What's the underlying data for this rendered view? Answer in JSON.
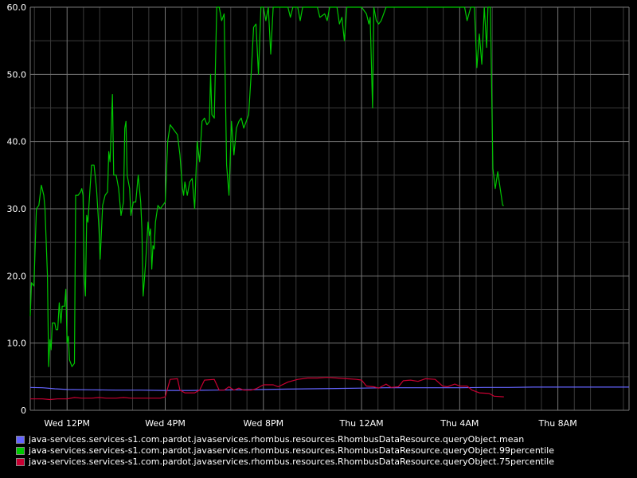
{
  "colors": {
    "background": "#000000",
    "grid_major": "#777777",
    "grid_minor": "#3a3a3a",
    "text": "#ffffff"
  },
  "chart_data": {
    "type": "line",
    "ylim": [
      0,
      60
    ],
    "xlim": [
      10.5,
      34.9
    ],
    "yticks": [
      {
        "value": 0,
        "label": "0"
      },
      {
        "value": 10,
        "label": "10.0"
      },
      {
        "value": 20,
        "label": "20.0"
      },
      {
        "value": 30,
        "label": "30.0"
      },
      {
        "value": 40,
        "label": "40.0"
      },
      {
        "value": 50,
        "label": "50.0"
      },
      {
        "value": 60,
        "label": "60.0"
      }
    ],
    "yminor": [
      5,
      15,
      25,
      35,
      45,
      55
    ],
    "xticks": [
      {
        "value": 12,
        "label": "Wed 12PM"
      },
      {
        "value": 16,
        "label": "Wed  4PM"
      },
      {
        "value": 20,
        "label": "Wed  8PM"
      },
      {
        "value": 24,
        "label": "Thu 12AM"
      },
      {
        "value": 28,
        "label": "Thu  4AM"
      },
      {
        "value": 32,
        "label": "Thu  8AM"
      }
    ],
    "xminor": [
      10.67,
      11.33,
      12.67,
      13.33,
      14.67,
      15.33,
      16.67,
      17.33,
      18.67,
      19.33,
      20.67,
      21.33,
      22.67,
      23.33,
      24.67,
      25.33,
      26.67,
      27.33,
      28.67,
      29.33,
      30.67,
      31.33,
      32.67,
      33.33,
      34.67
    ],
    "series": [
      {
        "name": "java-services.services-s1.com.pardot.javaservices.rhombus.resources.RhombusDataResource.queryObject.mean",
        "color": "#6464ff",
        "points": [
          [
            10.5,
            3.4
          ],
          [
            11.0,
            3.35
          ],
          [
            11.5,
            3.2
          ],
          [
            12.0,
            3.1
          ],
          [
            13.0,
            3.05
          ],
          [
            14.0,
            3.0
          ],
          [
            15.0,
            3.0
          ],
          [
            16.0,
            2.95
          ],
          [
            17.0,
            2.95
          ],
          [
            18.0,
            3.0
          ],
          [
            19.0,
            3.05
          ],
          [
            20.0,
            3.1
          ],
          [
            21.0,
            3.15
          ],
          [
            22.0,
            3.2
          ],
          [
            23.0,
            3.25
          ],
          [
            24.0,
            3.3
          ],
          [
            25.0,
            3.35
          ],
          [
            26.0,
            3.35
          ],
          [
            27.0,
            3.35
          ],
          [
            28.0,
            3.35
          ],
          [
            29.0,
            3.4
          ],
          [
            30.0,
            3.4
          ],
          [
            31.0,
            3.45
          ],
          [
            32.0,
            3.45
          ],
          [
            33.0,
            3.45
          ],
          [
            34.0,
            3.45
          ],
          [
            34.9,
            3.45
          ]
        ]
      },
      {
        "name": "java-services.services-s1.com.pardot.javaservices.rhombus.resources.RhombusDataResource.queryObject.99percentile",
        "color": "#00c800",
        "points": [
          [
            10.5,
            14.0
          ],
          [
            10.55,
            19.0
          ],
          [
            10.65,
            18.5
          ],
          [
            10.75,
            30.0
          ],
          [
            10.85,
            30.5
          ],
          [
            10.95,
            33.5
          ],
          [
            11.05,
            32.0
          ],
          [
            11.1,
            30.0
          ],
          [
            11.2,
            20.0
          ],
          [
            11.25,
            6.5
          ],
          [
            11.3,
            10.5
          ],
          [
            11.35,
            9.0
          ],
          [
            11.4,
            13.0
          ],
          [
            11.5,
            13.0
          ],
          [
            11.55,
            12.0
          ],
          [
            11.62,
            12.0
          ],
          [
            11.68,
            16.0
          ],
          [
            11.75,
            13.0
          ],
          [
            11.8,
            15.5
          ],
          [
            11.9,
            15.5
          ],
          [
            11.95,
            18.0
          ],
          [
            12.0,
            10.0
          ],
          [
            12.05,
            11.0
          ],
          [
            12.1,
            7.5
          ],
          [
            12.2,
            6.5
          ],
          [
            12.3,
            7.0
          ],
          [
            12.35,
            32.0
          ],
          [
            12.45,
            32.0
          ],
          [
            12.55,
            32.5
          ],
          [
            12.6,
            33.0
          ],
          [
            12.65,
            32.0
          ],
          [
            12.7,
            20.0
          ],
          [
            12.75,
            17.0
          ],
          [
            12.8,
            29.0
          ],
          [
            12.85,
            28.0
          ],
          [
            12.9,
            31.0
          ],
          [
            13.0,
            36.5
          ],
          [
            13.1,
            36.5
          ],
          [
            13.2,
            33.0
          ],
          [
            13.3,
            27.0
          ],
          [
            13.35,
            22.5
          ],
          [
            13.45,
            30.5
          ],
          [
            13.55,
            32.0
          ],
          [
            13.65,
            32.5
          ],
          [
            13.7,
            38.5
          ],
          [
            13.75,
            37.0
          ],
          [
            13.85,
            47.0
          ],
          [
            13.9,
            35.0
          ],
          [
            14.0,
            35.0
          ],
          [
            14.1,
            33.0
          ],
          [
            14.2,
            29.0
          ],
          [
            14.3,
            31.0
          ],
          [
            14.35,
            42.0
          ],
          [
            14.4,
            43.0
          ],
          [
            14.45,
            35.0
          ],
          [
            14.55,
            33.0
          ],
          [
            14.6,
            29.0
          ],
          [
            14.7,
            31.0
          ],
          [
            14.8,
            31.0
          ],
          [
            14.9,
            35.0
          ],
          [
            15.0,
            31.0
          ],
          [
            15.05,
            27.0
          ],
          [
            15.1,
            17.0
          ],
          [
            15.2,
            22.0
          ],
          [
            15.3,
            28.0
          ],
          [
            15.35,
            26.0
          ],
          [
            15.4,
            27.0
          ],
          [
            15.45,
            21.0
          ],
          [
            15.5,
            24.5
          ],
          [
            15.55,
            24.0
          ],
          [
            15.6,
            28.0
          ],
          [
            15.7,
            30.5
          ],
          [
            15.8,
            30.0
          ],
          [
            15.9,
            30.5
          ],
          [
            16.0,
            31.0
          ],
          [
            16.1,
            40.0
          ],
          [
            16.2,
            42.5
          ],
          [
            16.4,
            41.5
          ],
          [
            16.5,
            41.0
          ],
          [
            16.6,
            38.0
          ],
          [
            16.7,
            33.0
          ],
          [
            16.75,
            32.0
          ],
          [
            16.8,
            34.0
          ],
          [
            16.9,
            32.0
          ],
          [
            17.0,
            34.0
          ],
          [
            17.1,
            34.5
          ],
          [
            17.2,
            30.0
          ],
          [
            17.3,
            40.0
          ],
          [
            17.4,
            37.0
          ],
          [
            17.5,
            43.0
          ],
          [
            17.6,
            43.5
          ],
          [
            17.7,
            42.5
          ],
          [
            17.8,
            43.0
          ],
          [
            17.85,
            50.0
          ],
          [
            17.9,
            44.0
          ],
          [
            18.0,
            43.5
          ],
          [
            18.1,
            60.0
          ],
          [
            18.2,
            60.0
          ],
          [
            18.3,
            58.0
          ],
          [
            18.4,
            59.0
          ],
          [
            18.5,
            36.5
          ],
          [
            18.6,
            32.0
          ],
          [
            18.7,
            43.0
          ],
          [
            18.8,
            38.0
          ],
          [
            18.9,
            42.0
          ],
          [
            19.0,
            43.0
          ],
          [
            19.1,
            43.5
          ],
          [
            19.2,
            42.0
          ],
          [
            19.3,
            43.0
          ],
          [
            19.4,
            44.0
          ],
          [
            19.5,
            50.0
          ],
          [
            19.6,
            57.0
          ],
          [
            19.7,
            57.5
          ],
          [
            19.8,
            50.0
          ],
          [
            19.9,
            60.0
          ],
          [
            20.0,
            60.0
          ],
          [
            20.1,
            58.0
          ],
          [
            20.2,
            60.0
          ],
          [
            20.3,
            53.0
          ],
          [
            20.4,
            60.0
          ],
          [
            20.5,
            60.0
          ],
          [
            20.6,
            60.0
          ],
          [
            21.0,
            60.0
          ],
          [
            21.1,
            58.5
          ],
          [
            21.2,
            60.0
          ],
          [
            21.4,
            60.0
          ],
          [
            21.5,
            58.0
          ],
          [
            21.6,
            60.0
          ],
          [
            22.0,
            60.0
          ],
          [
            22.2,
            60.0
          ],
          [
            22.3,
            58.5
          ],
          [
            22.5,
            59.0
          ],
          [
            22.6,
            58.0
          ],
          [
            22.7,
            60.0
          ],
          [
            23.0,
            60.0
          ],
          [
            23.1,
            57.5
          ],
          [
            23.2,
            58.5
          ],
          [
            23.3,
            55.0
          ],
          [
            23.4,
            60.0
          ],
          [
            23.6,
            60.0
          ],
          [
            24.0,
            60.0
          ],
          [
            24.2,
            59.0
          ],
          [
            24.3,
            57.5
          ],
          [
            24.35,
            58.5
          ],
          [
            24.45,
            45.0
          ],
          [
            24.5,
            60.0
          ],
          [
            24.6,
            58.0
          ],
          [
            24.7,
            57.5
          ],
          [
            24.8,
            58.0
          ],
          [
            25.0,
            60.0
          ],
          [
            25.2,
            60.0
          ],
          [
            25.4,
            60.0
          ],
          [
            26.0,
            60.0
          ],
          [
            26.5,
            60.0
          ],
          [
            27.0,
            60.0
          ],
          [
            27.5,
            60.0
          ],
          [
            28.0,
            60.0
          ],
          [
            28.2,
            60.0
          ],
          [
            28.3,
            58.0
          ],
          [
            28.45,
            60.0
          ],
          [
            28.6,
            60.0
          ],
          [
            28.7,
            51.0
          ],
          [
            28.8,
            56.0
          ],
          [
            28.9,
            51.5
          ],
          [
            29.0,
            60.0
          ],
          [
            29.1,
            54.0
          ],
          [
            29.15,
            60.0
          ],
          [
            29.25,
            60.0
          ],
          [
            29.35,
            36.0
          ],
          [
            29.45,
            33.0
          ],
          [
            29.55,
            35.5
          ],
          [
            29.65,
            33.0
          ],
          [
            29.75,
            30.5
          ],
          [
            29.8,
            30.5
          ]
        ]
      },
      {
        "name": "java-services.services-s1.com.pardot.javaservices.rhombus.resources.RhombusDataResource.queryObject.75percentile",
        "color": "#c80032",
        "points": [
          [
            10.5,
            1.7
          ],
          [
            11.0,
            1.7
          ],
          [
            11.3,
            1.6
          ],
          [
            11.6,
            1.7
          ],
          [
            12.0,
            1.7
          ],
          [
            12.3,
            1.9
          ],
          [
            12.6,
            1.8
          ],
          [
            13.0,
            1.8
          ],
          [
            13.3,
            1.9
          ],
          [
            13.6,
            1.8
          ],
          [
            14.0,
            1.8
          ],
          [
            14.3,
            1.9
          ],
          [
            14.6,
            1.8
          ],
          [
            15.0,
            1.8
          ],
          [
            15.5,
            1.8
          ],
          [
            15.8,
            1.8
          ],
          [
            16.0,
            2.0
          ],
          [
            16.2,
            4.6
          ],
          [
            16.5,
            4.7
          ],
          [
            16.6,
            3.0
          ],
          [
            16.8,
            2.6
          ],
          [
            17.2,
            2.6
          ],
          [
            17.4,
            3.0
          ],
          [
            17.6,
            4.5
          ],
          [
            18.0,
            4.6
          ],
          [
            18.2,
            3.0
          ],
          [
            18.4,
            3.0
          ],
          [
            18.6,
            3.5
          ],
          [
            18.8,
            3.0
          ],
          [
            19.0,
            3.3
          ],
          [
            19.2,
            3.0
          ],
          [
            19.5,
            3.0
          ],
          [
            19.7,
            3.2
          ],
          [
            20.0,
            3.8
          ],
          [
            20.4,
            3.8
          ],
          [
            20.6,
            3.5
          ],
          [
            21.0,
            4.2
          ],
          [
            21.4,
            4.6
          ],
          [
            21.8,
            4.8
          ],
          [
            22.2,
            4.8
          ],
          [
            22.6,
            4.9
          ],
          [
            23.0,
            4.8
          ],
          [
            23.4,
            4.7
          ],
          [
            23.8,
            4.6
          ],
          [
            24.0,
            4.5
          ],
          [
            24.2,
            3.6
          ],
          [
            24.5,
            3.5
          ],
          [
            24.7,
            3.3
          ],
          [
            25.0,
            3.9
          ],
          [
            25.2,
            3.4
          ],
          [
            25.5,
            3.5
          ],
          [
            25.7,
            4.4
          ],
          [
            26.0,
            4.5
          ],
          [
            26.3,
            4.3
          ],
          [
            26.6,
            4.7
          ],
          [
            27.0,
            4.6
          ],
          [
            27.3,
            3.6
          ],
          [
            27.5,
            3.5
          ],
          [
            27.8,
            3.9
          ],
          [
            28.0,
            3.6
          ],
          [
            28.3,
            3.6
          ],
          [
            28.5,
            3.0
          ],
          [
            28.8,
            2.6
          ],
          [
            29.2,
            2.5
          ],
          [
            29.4,
            2.1
          ],
          [
            29.8,
            2.0
          ]
        ]
      }
    ]
  },
  "legend": [
    {
      "label": "java-services.services-s1.com.pardot.javaservices.rhombus.resources.RhombusDataResource.queryObject.mean",
      "color": "#6464ff"
    },
    {
      "label": "java-services.services-s1.com.pardot.javaservices.rhombus.resources.RhombusDataResource.queryObject.99percentile",
      "color": "#00c800"
    },
    {
      "label": "java-services.services-s1.com.pardot.javaservices.rhombus.resources.RhombusDataResource.queryObject.75percentile",
      "color": "#c80032"
    }
  ]
}
